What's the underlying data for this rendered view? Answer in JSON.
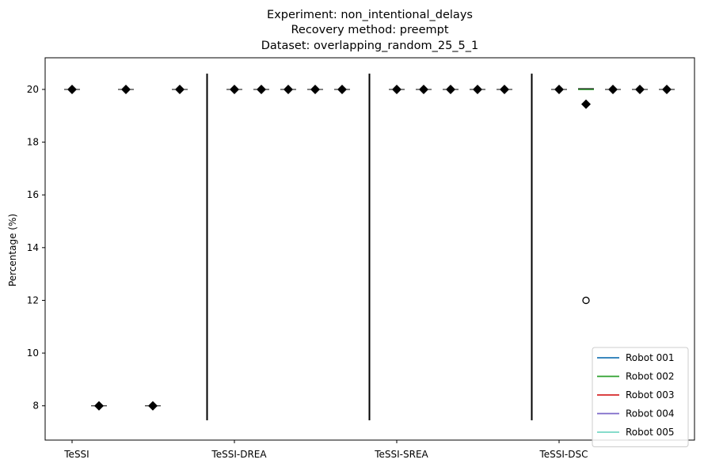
{
  "chart_data": {
    "type": "box",
    "title_lines": [
      "Experiment: non_intentional_delays",
      "Recovery method: preempt",
      "Dataset: overlapping_random_25_5_1"
    ],
    "xlabel": "",
    "ylabel": "Percentage (%)",
    "ylim": [
      6.7,
      21.2
    ],
    "yticks": [
      8,
      10,
      12,
      14,
      16,
      18,
      20
    ],
    "grid": false,
    "legend_position": "lower right",
    "groups": [
      "TeSSI",
      "TeSSI-DREA",
      "TeSSI-SREA",
      "TeSSI-DSC"
    ],
    "series": [
      {
        "name": "Robot 001",
        "color": "#1f77b4",
        "values": [
          20,
          20,
          20,
          20
        ],
        "outliers": [
          [],
          [],
          [],
          []
        ]
      },
      {
        "name": "Robot 002",
        "color": "#2ca02c",
        "values": [
          8,
          20,
          20,
          19.44
        ],
        "outliers": [
          [],
          [],
          [],
          [
            12
          ]
        ]
      },
      {
        "name": "Robot 003",
        "color": "#d62728",
        "values": [
          20,
          20,
          20,
          20
        ],
        "outliers": [
          [],
          [],
          [],
          []
        ]
      },
      {
        "name": "Robot 004",
        "color": "#7b68c8",
        "values": [
          8,
          20,
          20,
          20
        ],
        "outliers": [
          [],
          [],
          [],
          []
        ]
      },
      {
        "name": "Robot 005",
        "color": "#76d7c4",
        "values": [
          20,
          20,
          20,
          20
        ],
        "outliers": [
          [],
          [],
          [],
          []
        ]
      }
    ]
  }
}
